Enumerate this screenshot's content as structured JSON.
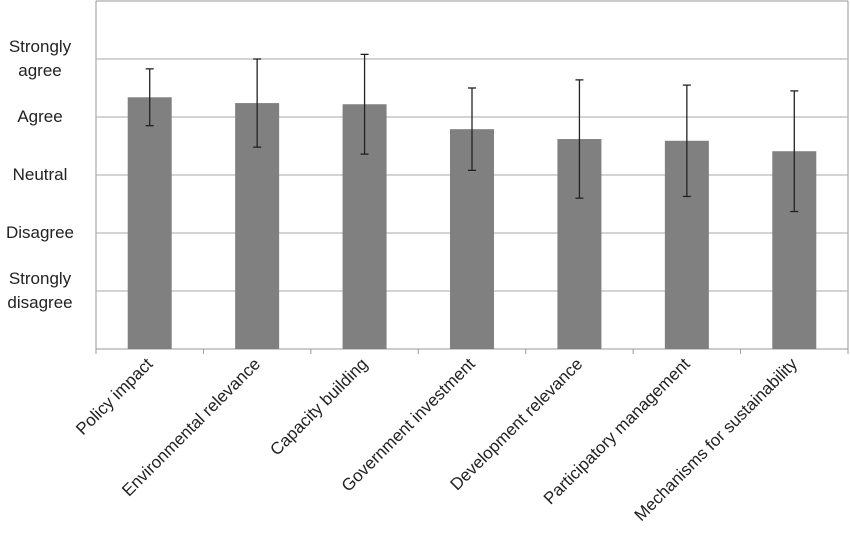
{
  "chart_data": {
    "type": "bar",
    "categories": [
      "Policy impact",
      "Environmental relevance",
      "Capacity building",
      "Government investment",
      "Development relevance",
      "Participatory management",
      "Mechanisms for sustainability"
    ],
    "values": [
      4.34,
      4.24,
      4.22,
      3.79,
      3.62,
      3.59,
      3.41
    ],
    "errors": [
      0.49,
      0.76,
      0.86,
      0.71,
      1.02,
      0.96,
      1.04
    ],
    "color": "#808080",
    "ylim": [
      0,
      6
    ],
    "yticks": [
      {
        "value": 1,
        "label": "Strongly disagree"
      },
      {
        "value": 2,
        "label": "Disagree"
      },
      {
        "value": 3,
        "label": "Neutral"
      },
      {
        "value": 4,
        "label": "Agree"
      },
      {
        "value": 5,
        "label": "Strongly agree"
      }
    ],
    "grid": true
  }
}
